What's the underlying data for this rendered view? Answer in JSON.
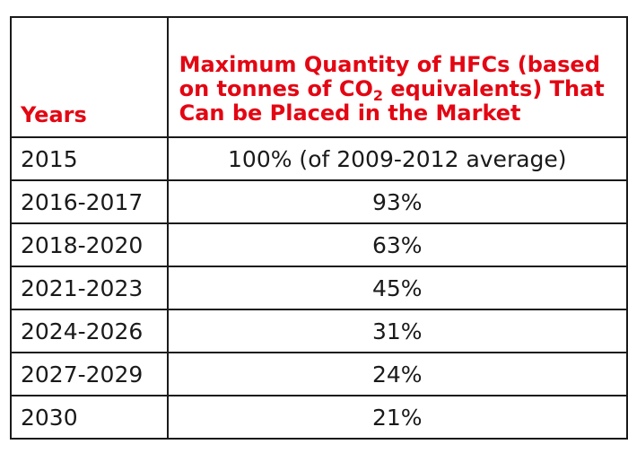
{
  "header": {
    "years": "Years",
    "quantity_part1": "Maximum Quantity of HFCs (based on tonnes of CO",
    "quantity_sub": "2",
    "quantity_part2": " equivalents) That Can be Placed in the Market"
  },
  "rows": [
    {
      "years": "2015",
      "value": "100% (of 2009-2012 average)"
    },
    {
      "years": "2016-2017",
      "value": "93%"
    },
    {
      "years": "2018-2020",
      "value": "63%"
    },
    {
      "years": "2021-2023",
      "value": "45%"
    },
    {
      "years": "2024-2026",
      "value": "31%"
    },
    {
      "years": "2027-2029",
      "value": "24%"
    },
    {
      "years": "2030",
      "value": "21%"
    }
  ],
  "colors": {
    "header_text": "#e30613",
    "body_text": "#1a1a1a",
    "border": "#1a1a1a"
  }
}
